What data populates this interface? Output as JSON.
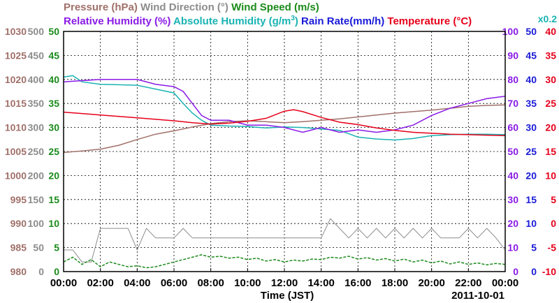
{
  "chart_data": {
    "type": "line",
    "xlabel": "Time (JST)",
    "date_label": "2011-10-01",
    "x_ticks": [
      "00:00",
      "02:00",
      "04:00",
      "06:00",
      "08:00",
      "10:00",
      "12:00",
      "14:00",
      "16:00",
      "18:00",
      "20:00",
      "22:00",
      "00:00"
    ],
    "x_range_hours": [
      0,
      24
    ],
    "grid": true,
    "legend": {
      "row1": [
        {
          "key": "pressure",
          "label": "Pressure (hPa)",
          "color": "#a0706a"
        },
        {
          "key": "wind_dir",
          "label": "Wind Direction (°)",
          "color": "#8c8c8c"
        },
        {
          "key": "wind_speed",
          "label": "Wind Speed (m/s)",
          "color": "#1a8a1a"
        }
      ],
      "row2": [
        {
          "key": "rh",
          "label": "Relative Humidity (%)",
          "color": "#8a1ae6"
        },
        {
          "key": "ah",
          "label": "Absolute Humidity (g/m",
          "sup": "3",
          "tail": ")",
          "color": "#1ab3b3"
        },
        {
          "key": "rain",
          "label": "Rain Rate(mm/h)",
          "color": "#1a1ad9"
        },
        {
          "key": "temp",
          "label": "Temperature (°C)",
          "color": "#e6001a"
        }
      ],
      "scale_note": "x0.2"
    },
    "axes": {
      "pressure": {
        "color": "#a0706a",
        "ticks": [
          "1030",
          "1025",
          "1020",
          "1015",
          "1010",
          "1005",
          "1000",
          "995",
          "990",
          "985",
          "980"
        ],
        "range": [
          980,
          1030
        ]
      },
      "wind_dir": {
        "color": "#8c8c8c",
        "ticks": [
          "500",
          "450",
          "400",
          "350",
          "300",
          "250",
          "200",
          "150",
          "100",
          "50",
          "0"
        ],
        "range": [
          0,
          500
        ]
      },
      "wind_speed": {
        "color": "#1a8a1a",
        "ticks": [
          "50",
          "45",
          "40",
          "35",
          "30",
          "25",
          "20",
          "15",
          "10",
          "5",
          "0"
        ],
        "range": [
          0,
          50
        ]
      },
      "rh": {
        "color": "#8a1ae6",
        "ticks": [
          "100",
          "90",
          "80",
          "70",
          "60",
          "50",
          "40",
          "30",
          "20",
          "10",
          "0"
        ],
        "range": [
          0,
          100
        ]
      },
      "rain": {
        "color": "#1a1ad9",
        "ticks": [
          "50",
          "45",
          "40",
          "35",
          "30",
          "25",
          "20",
          "15",
          "10",
          "5",
          "0"
        ],
        "range": [
          0,
          50
        ]
      },
      "temp": {
        "color": "#e6001a",
        "ticks": [
          "40",
          "35",
          "30",
          "25",
          "20",
          "15",
          "10",
          "5",
          "0",
          "-5",
          "-10"
        ],
        "range": [
          -10,
          40
        ]
      }
    },
    "series": [
      {
        "name": "Pressure (hPa)",
        "axis": "pressure",
        "color": "#a0706a",
        "x": [
          0,
          1,
          2,
          3,
          4,
          5,
          6,
          7,
          8,
          9,
          10,
          11,
          12,
          13,
          14,
          15,
          16,
          17,
          18,
          19,
          20,
          21,
          22,
          23,
          24
        ],
        "y": [
          1004.8,
          1005.1,
          1005.5,
          1006.3,
          1007.5,
          1008.6,
          1009.3,
          1010.1,
          1010.8,
          1011.2,
          1011.4,
          1011.2,
          1011.0,
          1011.2,
          1011.5,
          1011.8,
          1012.2,
          1012.6,
          1013.0,
          1013.3,
          1013.6,
          1014.0,
          1014.4,
          1014.6,
          1014.7
        ]
      },
      {
        "name": "Temperature (°C)",
        "axis": "temp",
        "color": "#e6001a",
        "x": [
          0,
          1,
          2,
          3,
          4,
          5,
          6,
          7,
          8,
          9,
          10,
          11,
          12,
          12.5,
          13,
          14,
          15,
          16,
          17,
          18,
          19,
          20,
          21,
          22,
          23,
          24
        ],
        "y": [
          23.2,
          22.9,
          22.6,
          22.3,
          22.0,
          21.7,
          21.4,
          21.0,
          20.7,
          20.9,
          21.3,
          21.9,
          23.4,
          23.7,
          23.3,
          22.1,
          21.1,
          20.6,
          19.9,
          19.4,
          19.0,
          18.8,
          18.6,
          18.5,
          18.4,
          18.3
        ]
      },
      {
        "name": "Relative Humidity (%)",
        "axis": "rh",
        "color": "#8a1ae6",
        "x": [
          0,
          1,
          2,
          3,
          4,
          5,
          6,
          6.5,
          7,
          7.5,
          8,
          9,
          10,
          11,
          12,
          13,
          14,
          15,
          16,
          17,
          18,
          19,
          20,
          21,
          22,
          23,
          24
        ],
        "y": [
          79,
          79.5,
          80,
          80,
          80,
          78,
          77,
          75,
          70,
          65,
          63,
          63,
          61,
          61,
          60,
          58,
          60,
          58,
          59,
          58,
          59,
          61,
          65,
          68,
          70,
          72,
          73
        ]
      },
      {
        "name": "Absolute Humidity (g/m3)",
        "axis": "wind_speed",
        "color": "#1ab3b3",
        "x": [
          0,
          0.5,
          1,
          2,
          3,
          4,
          5,
          6,
          6.5,
          7,
          7.5,
          8,
          9,
          10,
          11,
          12,
          13,
          14,
          15,
          16,
          17,
          18,
          19,
          20,
          21,
          22,
          23,
          24
        ],
        "y": [
          40.5,
          40.8,
          39.5,
          39,
          38.9,
          38.8,
          38,
          37.2,
          35,
          33,
          31.5,
          30.5,
          30.3,
          30.2,
          29.9,
          30.1,
          30.0,
          29.7,
          29.4,
          28.0,
          27.6,
          27.4,
          27.7,
          28.3,
          28.5,
          28.6,
          28.6,
          28.5
        ]
      },
      {
        "name": "Wind Direction (°)",
        "axis": "wind_dir",
        "color": "#8c8c8c",
        "x": [
          0,
          0.5,
          1,
          1.5,
          2,
          2.5,
          3,
          3.5,
          4,
          4.5,
          5,
          5.5,
          6,
          6.5,
          7,
          7.5,
          8,
          8.5,
          9,
          9.5,
          10,
          10.5,
          11,
          11.5,
          12,
          12.5,
          13,
          13.5,
          14,
          14.5,
          15,
          15.5,
          16,
          16.5,
          17,
          17.5,
          18,
          18.5,
          19,
          19.5,
          20,
          20.5,
          21,
          21.5,
          22,
          22.5,
          23,
          23.5,
          24
        ],
        "y": [
          45,
          45,
          20,
          20,
          90,
          90,
          90,
          90,
          45,
          90,
          70,
          70,
          70,
          90,
          70,
          70,
          70,
          70,
          70,
          70,
          70,
          70,
          70,
          70,
          70,
          70,
          70,
          70,
          70,
          110,
          90,
          70,
          90,
          70,
          90,
          70,
          90,
          70,
          90,
          70,
          90,
          70,
          70,
          70,
          90,
          70,
          90,
          70,
          45
        ]
      },
      {
        "name": "Wind Speed (m/s)",
        "axis": "wind_speed",
        "color": "#1a8a1a",
        "x": [
          0,
          0.5,
          1,
          1.5,
          2,
          2.5,
          3,
          3.5,
          4,
          4.5,
          5,
          5.5,
          6,
          6.5,
          7,
          7.5,
          8,
          8.5,
          9,
          9.5,
          10,
          10.5,
          11,
          11.5,
          12,
          12.5,
          13,
          13.5,
          14,
          14.5,
          15,
          15.5,
          16,
          16.5,
          17,
          17.5,
          18,
          18.5,
          19,
          19.5,
          20,
          20.5,
          21,
          21.5,
          22,
          22.5,
          23,
          23.5,
          24
        ],
        "y": [
          2,
          3,
          1.5,
          2.5,
          1,
          2,
          1.5,
          1,
          1.2,
          0.8,
          1,
          1.5,
          2,
          2.5,
          3,
          3.5,
          3,
          3.2,
          2.8,
          3,
          2.5,
          2.8,
          2.2,
          2.5,
          2,
          2.4,
          2.2,
          2.6,
          2.5,
          3,
          2.8,
          3.2,
          2.6,
          2.9,
          2.4,
          2.7,
          2.2,
          2.6,
          2,
          2.4,
          1.8,
          2.2,
          1.6,
          2,
          1.5,
          1.8,
          1.4,
          1.7,
          1.5
        ]
      }
    ]
  }
}
